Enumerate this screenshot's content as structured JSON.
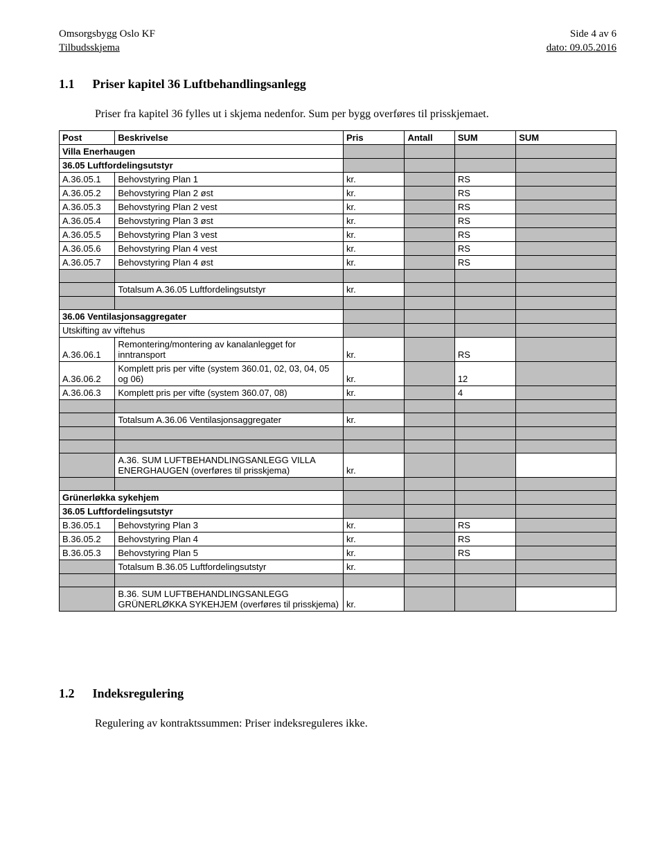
{
  "header": {
    "left_line1": "Omsorgsbygg Oslo KF",
    "left_line2": "Tilbudsskjema",
    "right_line1": "Side 4 av 6",
    "right_line2": "dato: 09.05.2016"
  },
  "section1": {
    "number": "1.1",
    "title": "Priser kapitel 36 Luftbehandlingsanlegg",
    "intro": "Priser fra kapitel 36 fylles ut i skjema nedenfor. Sum per bygg overføres til prisskjemaet."
  },
  "columns": {
    "post": "Post",
    "beskr": "Beskrivelse",
    "pris": "Pris",
    "antall": "Antall",
    "sum1": "SUM",
    "sum2": "SUM"
  },
  "kr": "kr.",
  "rs": "RS",
  "villa": {
    "heading": "Villa Enerhaugen",
    "sec05": "36.05 Luftfordelingsutstyr",
    "rows": [
      {
        "post": "A.36.05.1",
        "beskr": "Behovstyring Plan 1"
      },
      {
        "post": "A.36.05.2",
        "beskr": "Behovstyring Plan 2 øst"
      },
      {
        "post": "A.36.05.3",
        "beskr": "Behovstyring Plan 2 vest"
      },
      {
        "post": "A.36.05.4",
        "beskr": "Behovstyring Plan 3 øst"
      },
      {
        "post": "A.36.05.5",
        "beskr": "Behovstyring Plan 3 vest"
      },
      {
        "post": "A.36.05.6",
        "beskr": "Behovstyring Plan 4 vest"
      },
      {
        "post": "A.36.05.7",
        "beskr": "Behovstyring Plan 4 øst"
      }
    ],
    "total05": "Totalsum A.36.05 Luftfordelingsutstyr",
    "sec06": "36.06 Ventilasjonsaggregater",
    "sec06sub": "Utskifting av viftehus",
    "rows06": [
      {
        "post": "A.36.06.1",
        "beskr": "Remontering/montering av kanalanlegget for inntransport",
        "antall": "RS"
      },
      {
        "post": "A.36.06.2",
        "beskr": "Komplett pris per vifte (system 360.01, 02, 03, 04, 05 og 06)",
        "antall": "12"
      },
      {
        "post": "A.36.06.3",
        "beskr": "Komplett pris per vifte (system 360.07, 08)",
        "antall": "4"
      }
    ],
    "total06": "Totalsum A.36.06 Ventilasjonsaggregater",
    "sumbox": "A.36. SUM LUFTBEHANDLINGSANLEGG VILLA ENERGHAUGEN (overføres til prisskjema)"
  },
  "grunerlokka": {
    "heading": "Grünerløkka sykehjem",
    "sec05": "36.05 Luftfordelingsutstyr",
    "rows": [
      {
        "post": "B.36.05.1",
        "beskr": "Behovstyring Plan 3"
      },
      {
        "post": "B.36.05.2",
        "beskr": "Behovstyring Plan 4"
      },
      {
        "post": "B.36.05.3",
        "beskr": "Behovstyring Plan 5"
      }
    ],
    "total05": "Totalsum B.36.05 Luftfordelingsutstyr",
    "sumbox": "B.36. SUM LUFTBEHANDLINGSANLEGG GRÜNERLØKKA SYKEHJEM (overføres til prisskjema)"
  },
  "section2": {
    "number": "1.2",
    "title": "Indeksregulering",
    "body": "Regulering av kontraktssummen: Priser indeksreguleres ikke."
  },
  "colors": {
    "shaded": "#bfbfbf",
    "border": "#000000",
    "background": "#ffffff",
    "text": "#000000"
  }
}
